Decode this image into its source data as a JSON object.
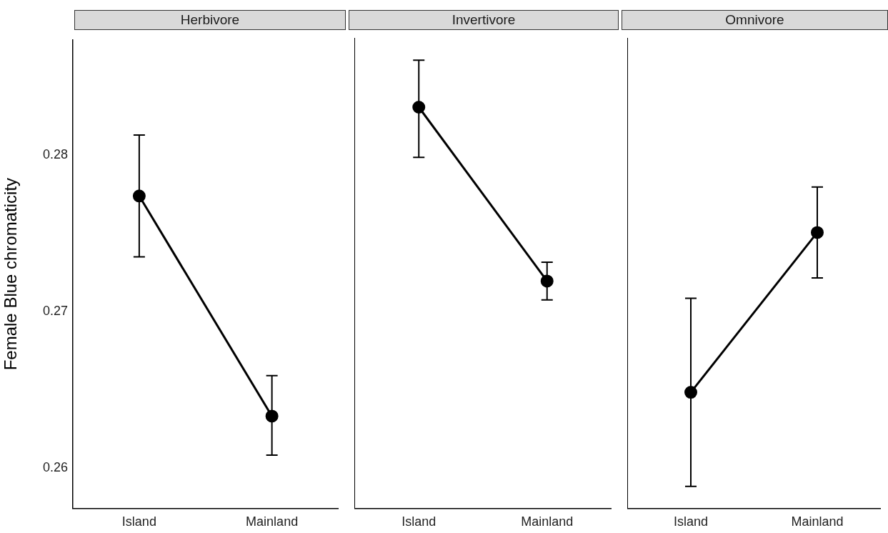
{
  "chart_data": [
    {
      "type": "line",
      "title": "Herbivore",
      "ylabel": "Female Blue chromaticity",
      "categories": [
        "Island",
        "Mainland"
      ],
      "series": [
        {
          "color": "#000000",
          "values": [
            0.2774,
            0.2633
          ],
          "errors": [
            [
              0.2735,
              0.2813
            ],
            [
              0.2608,
              0.2659
            ]
          ]
        }
      ],
      "ylim": [
        0.2574,
        0.2874
      ],
      "yticks": [
        0.26,
        0.27,
        0.28
      ],
      "grid": false,
      "marker": "circle",
      "line_style": "solid"
    },
    {
      "type": "line",
      "title": "Invertivore",
      "categories": [
        "Island",
        "Mainland"
      ],
      "series": [
        {
          "color": "#000000",
          "values": [
            0.283,
            0.2719
          ],
          "errors": [
            [
              0.2798,
              0.286
            ],
            [
              0.2707,
              0.2731
            ]
          ]
        }
      ],
      "ylim": [
        0.2574,
        0.2874
      ],
      "yticks": [
        0.26,
        0.27,
        0.28
      ],
      "tick_labels": "x",
      "grid": false,
      "marker": "circle",
      "line_style": "solid"
    },
    {
      "type": "line",
      "title": "Omnivore",
      "categories": [
        "Island",
        "Mainland"
      ],
      "series": [
        {
          "color": "#000000",
          "values": [
            0.2648,
            0.275
          ],
          "errors": [
            [
              0.2588,
              0.2708
            ],
            [
              0.2721,
              0.2779
            ]
          ]
        }
      ],
      "ylim": [
        0.2574,
        0.2874
      ],
      "yticks": [
        0.26,
        0.27,
        0.28
      ],
      "tick_labels": "x",
      "grid": false,
      "marker": "circle",
      "line_style": "solid"
    }
  ]
}
